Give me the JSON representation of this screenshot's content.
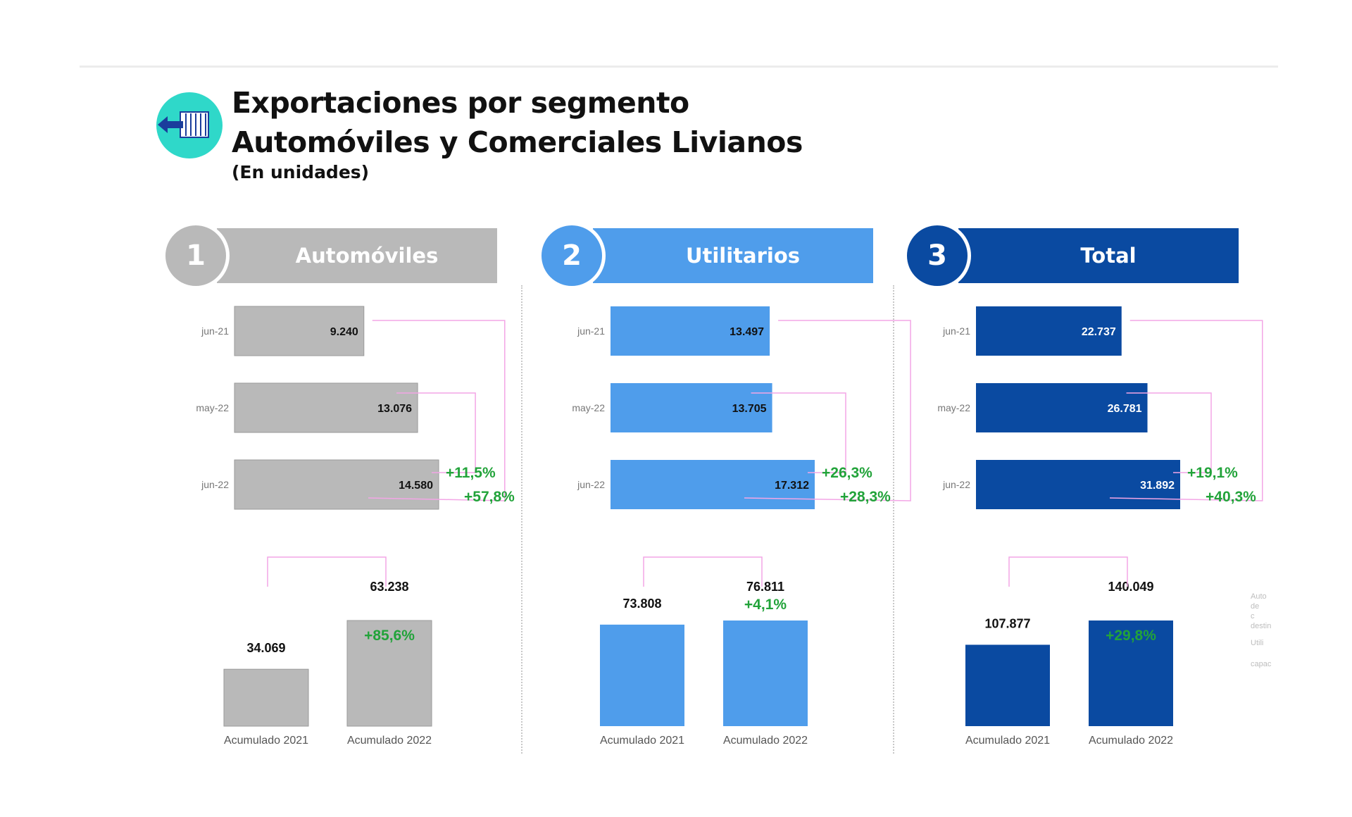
{
  "header": {
    "title_line1": "Exportaciones por segmento",
    "title_line2": "Automóviles y Comerciales Livianos",
    "subtitle": "(En unidades)",
    "icon": "container-export-icon"
  },
  "colors": {
    "automoviles": "#b9b9b9",
    "utilitarios": "#4f9deb",
    "total": "#0a4aa1",
    "change": "#22a33a",
    "connector": "#f3a6e6",
    "icon_bg": "#2fd8c9"
  },
  "footnote": {
    "lines": [
      "Auto",
      "de",
      "c",
      "destin",
      "Utili",
      "capac"
    ]
  },
  "chart_data": [
    {
      "type": "bar",
      "panel_number": "1",
      "panel_title": "Automóviles",
      "monthly": {
        "orientation": "horizontal",
        "categories": [
          "jun-21",
          "may-22",
          "jun-22"
        ],
        "values": [
          9240,
          13076,
          14580
        ],
        "value_labels": [
          "9.240",
          "13.076",
          "14.580"
        ],
        "changes": [
          {
            "from": "may-22",
            "to": "jun-22",
            "label": "+11,5%"
          },
          {
            "from": "jun-21",
            "to": "jun-22",
            "label": "+57,8%"
          }
        ]
      },
      "cumulative": {
        "categories": [
          "Acumulado 2021",
          "Acumulado 2022"
        ],
        "values": [
          34069,
          63238
        ],
        "value_labels": [
          "34.069",
          "63.238"
        ],
        "change": "+85,6%"
      }
    },
    {
      "type": "bar",
      "panel_number": "2",
      "panel_title": "Utilitarios",
      "monthly": {
        "orientation": "horizontal",
        "categories": [
          "jun-21",
          "may-22",
          "jun-22"
        ],
        "values": [
          13497,
          13705,
          17312
        ],
        "value_labels": [
          "13.497",
          "13.705",
          "17.312"
        ],
        "changes": [
          {
            "from": "may-22",
            "to": "jun-22",
            "label": "+26,3%"
          },
          {
            "from": "jun-21",
            "to": "jun-22",
            "label": "+28,3%"
          }
        ]
      },
      "cumulative": {
        "categories": [
          "Acumulado 2021",
          "Acumulado 2022"
        ],
        "values": [
          73808,
          76811
        ],
        "value_labels": [
          "73.808",
          "76.811"
        ],
        "change": "+4,1%"
      }
    },
    {
      "type": "bar",
      "panel_number": "3",
      "panel_title": "Total",
      "monthly": {
        "orientation": "horizontal",
        "categories": [
          "jun-21",
          "may-22",
          "jun-22"
        ],
        "values": [
          22737,
          26781,
          31892
        ],
        "value_labels": [
          "22.737",
          "26.781",
          "31.892"
        ],
        "changes": [
          {
            "from": "may-22",
            "to": "jun-22",
            "label": "+19,1%"
          },
          {
            "from": "jun-21",
            "to": "jun-22",
            "label": "+40,3%"
          }
        ]
      },
      "cumulative": {
        "categories": [
          "Acumulado 2021",
          "Acumulado 2022"
        ],
        "values": [
          107877,
          140049
        ],
        "value_labels": [
          "107.877",
          "140.049"
        ],
        "change": "+29,8%"
      }
    }
  ]
}
